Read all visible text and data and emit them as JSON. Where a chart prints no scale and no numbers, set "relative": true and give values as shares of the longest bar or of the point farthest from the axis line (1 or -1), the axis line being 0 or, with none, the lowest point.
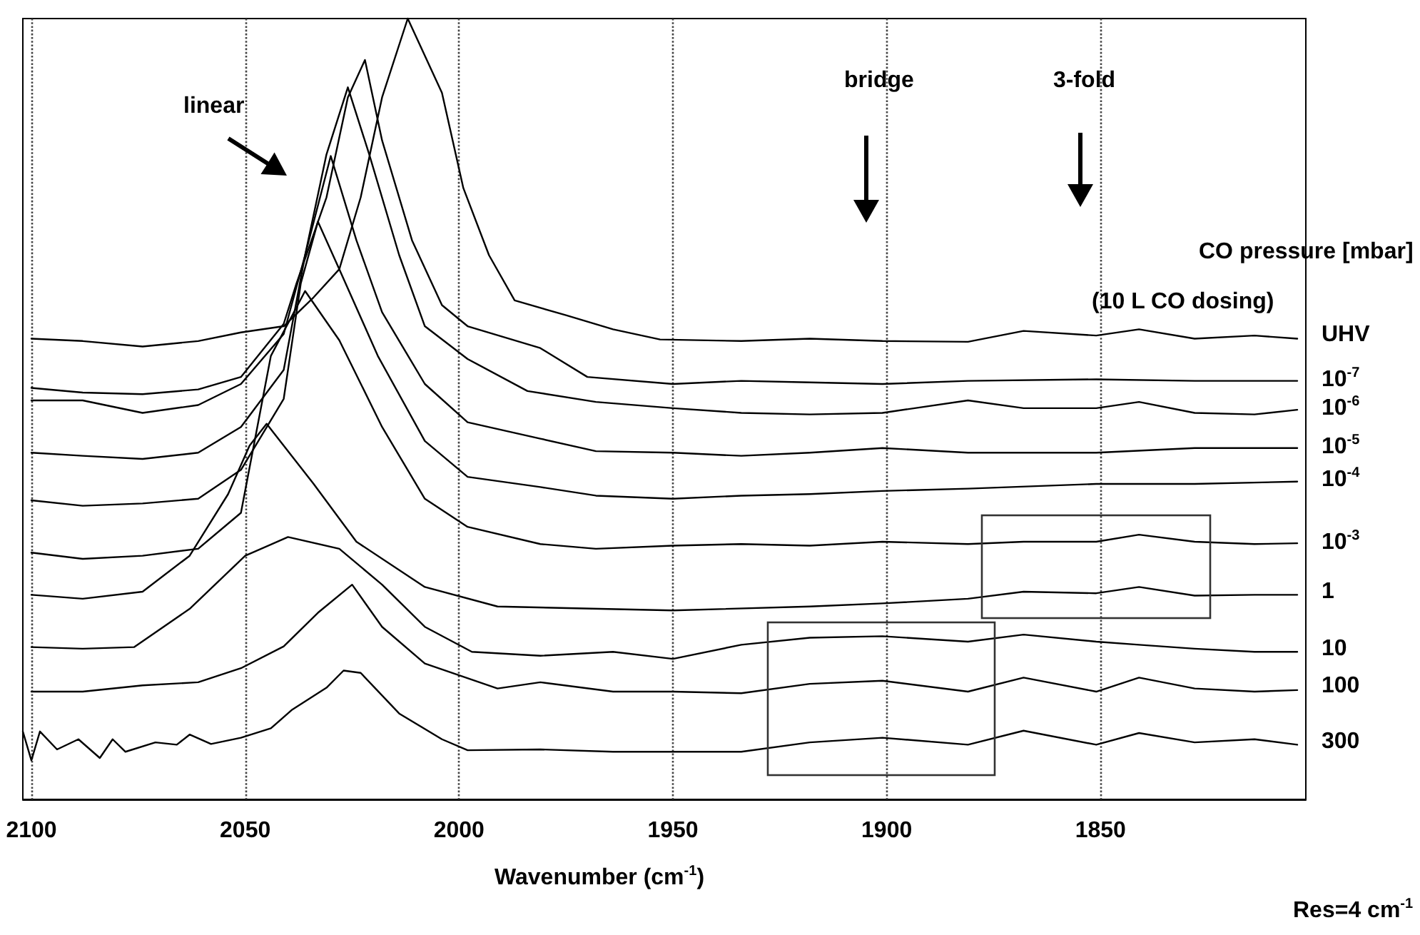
{
  "chart_data": {
    "type": "line",
    "relative": true,
    "xlabel": "Wavenumber (cm$^{-1}$)",
    "xlim": [
      2102,
      1802
    ],
    "xticks": [
      2100,
      2050,
      2000,
      1950,
      1900,
      1850
    ],
    "grid": "x",
    "legend": false,
    "marker": "none",
    "line_style": "solid",
    "annotations": [
      "linear",
      "bridge",
      "3-fold",
      "CO pressure [mbar]",
      "(10 L CO dosing)",
      "Res=4 cm$^{-1}$"
    ],
    "series": [
      {
        "name": "UHV",
        "color": "#000000",
        "x": [
          2100,
          2088,
          2074,
          2061,
          2051,
          2041,
          2034,
          2028,
          2023,
          2018,
          2012,
          2004,
          1999,
          1993,
          1987,
          1975,
          1964,
          1953,
          1934,
          1918,
          1901,
          1881,
          1868,
          1851,
          1841,
          1828,
          1814,
          1804
        ],
        "values": [
          0.59,
          0.587,
          0.58,
          0.587,
          0.598,
          0.606,
          0.643,
          0.679,
          0.771,
          0.899,
          1.0,
          0.905,
          0.783,
          0.697,
          0.639,
          0.62,
          0.602,
          0.589,
          0.587,
          0.59,
          0.587,
          0.586,
          0.6,
          0.594,
          0.602,
          0.59,
          0.594,
          0.59
        ]
      },
      {
        "name": "10$^{-7}$",
        "color": "#000000",
        "x": [
          2100,
          2088,
          2074,
          2061,
          2051,
          2041,
          2038,
          2031,
          2026,
          2022,
          2018,
          2011,
          2004,
          1998,
          1981,
          1970,
          1950,
          1934,
          1918,
          1901,
          1881,
          1851,
          1828,
          1804
        ],
        "values": [
          0.527,
          0.521,
          0.519,
          0.525,
          0.541,
          0.609,
          0.661,
          0.771,
          0.899,
          0.947,
          0.844,
          0.716,
          0.633,
          0.606,
          0.578,
          0.541,
          0.532,
          0.536,
          0.534,
          0.532,
          0.536,
          0.538,
          0.536,
          0.536
        ]
      },
      {
        "name": "10$^{-6}$",
        "color": "#000000",
        "x": [
          2100,
          2088,
          2074,
          2061,
          2051,
          2041,
          2036,
          2031,
          2026,
          2021,
          2014,
          2008,
          1998,
          1984,
          1968,
          1950,
          1934,
          1918,
          1901,
          1881,
          1868,
          1851,
          1841,
          1828,
          1814,
          1804
        ],
        "values": [
          0.511,
          0.511,
          0.495,
          0.505,
          0.532,
          0.596,
          0.697,
          0.826,
          0.912,
          0.826,
          0.697,
          0.606,
          0.564,
          0.523,
          0.509,
          0.501,
          0.495,
          0.493,
          0.495,
          0.511,
          0.501,
          0.501,
          0.509,
          0.495,
          0.493,
          0.499
        ]
      },
      {
        "name": "10$^{-5}$",
        "color": "#000000",
        "x": [
          2100,
          2088,
          2074,
          2061,
          2051,
          2041,
          2036,
          2030,
          2024,
          2018,
          2008,
          1998,
          1981,
          1968,
          1950,
          1934,
          1918,
          1901,
          1881,
          1851,
          1828,
          1804
        ],
        "values": [
          0.444,
          0.44,
          0.436,
          0.444,
          0.477,
          0.55,
          0.697,
          0.824,
          0.716,
          0.624,
          0.532,
          0.483,
          0.462,
          0.446,
          0.444,
          0.44,
          0.444,
          0.45,
          0.444,
          0.444,
          0.45,
          0.45
        ]
      },
      {
        "name": "10$^{-4}$",
        "color": "#000000",
        "x": [
          2100,
          2088,
          2074,
          2061,
          2051,
          2041,
          2037,
          2033,
          2028,
          2019,
          2008,
          1998,
          1981,
          1968,
          1950,
          1934,
          1918,
          1901,
          1881,
          1851,
          1828,
          1804
        ],
        "values": [
          0.383,
          0.376,
          0.379,
          0.385,
          0.422,
          0.513,
          0.661,
          0.74,
          0.679,
          0.568,
          0.459,
          0.413,
          0.4,
          0.389,
          0.385,
          0.389,
          0.391,
          0.395,
          0.398,
          0.404,
          0.404,
          0.407
        ]
      },
      {
        "name": "10$^{-3}$",
        "color": "#000000",
        "x": [
          2100,
          2088,
          2074,
          2061,
          2051,
          2044,
          2036,
          2028,
          2018,
          2008,
          1998,
          1981,
          1968,
          1950,
          1934,
          1918,
          1901,
          1881,
          1868,
          1851,
          1841,
          1828,
          1814,
          1804
        ],
        "values": [
          0.316,
          0.308,
          0.312,
          0.321,
          0.367,
          0.568,
          0.651,
          0.588,
          0.477,
          0.385,
          0.349,
          0.327,
          0.321,
          0.325,
          0.327,
          0.325,
          0.33,
          0.327,
          0.33,
          0.33,
          0.339,
          0.33,
          0.327,
          0.328
        ]
      },
      {
        "name": "1",
        "color": "#000000",
        "x": [
          2100,
          2088,
          2074,
          2063,
          2054,
          2049,
          2045,
          2034,
          2024,
          2008,
          1991,
          1950,
          1918,
          1901,
          1881,
          1868,
          1851,
          1841,
          1828,
          1814,
          1804
        ],
        "values": [
          0.262,
          0.257,
          0.266,
          0.312,
          0.391,
          0.453,
          0.481,
          0.404,
          0.33,
          0.272,
          0.247,
          0.242,
          0.247,
          0.251,
          0.257,
          0.266,
          0.264,
          0.272,
          0.261,
          0.262,
          0.262
        ]
      },
      {
        "name": "10",
        "color": "#000000",
        "x": [
          2100,
          2088,
          2076,
          2063,
          2050,
          2040,
          2028,
          2018,
          2008,
          1997,
          1981,
          1964,
          1950,
          1934,
          1918,
          1901,
          1881,
          1868,
          1851,
          1841,
          1828,
          1814,
          1804
        ],
        "values": [
          0.195,
          0.193,
          0.195,
          0.244,
          0.312,
          0.336,
          0.321,
          0.275,
          0.221,
          0.189,
          0.184,
          0.189,
          0.18,
          0.198,
          0.207,
          0.209,
          0.202,
          0.211,
          0.202,
          0.198,
          0.193,
          0.189,
          0.189
        ]
      },
      {
        "name": "100",
        "color": "#000000",
        "x": [
          2100,
          2088,
          2074,
          2061,
          2051,
          2041,
          2033,
          2025,
          2018,
          2008,
          1991,
          1981,
          1964,
          1950,
          1934,
          1918,
          1901,
          1881,
          1868,
          1851,
          1841,
          1828,
          1814,
          1804
        ],
        "values": [
          0.138,
          0.138,
          0.146,
          0.15,
          0.168,
          0.196,
          0.239,
          0.275,
          0.221,
          0.174,
          0.142,
          0.15,
          0.138,
          0.138,
          0.136,
          0.148,
          0.152,
          0.138,
          0.156,
          0.138,
          0.156,
          0.142,
          0.138,
          0.14
        ]
      },
      {
        "name": "300",
        "color": "#000000",
        "x": [
          2102,
          2100,
          2098,
          2094,
          2089,
          2084,
          2081,
          2078,
          2071,
          2066,
          2063,
          2058,
          2051,
          2044,
          2039,
          2031,
          2027,
          2023,
          2014,
          2004,
          1998,
          1981,
          1964,
          1950,
          1934,
          1918,
          1901,
          1881,
          1868,
          1851,
          1841,
          1828,
          1814,
          1804
        ],
        "values": [
          0.087,
          0.05,
          0.087,
          0.064,
          0.077,
          0.053,
          0.077,
          0.061,
          0.073,
          0.07,
          0.083,
          0.071,
          0.079,
          0.091,
          0.115,
          0.143,
          0.165,
          0.162,
          0.11,
          0.077,
          0.063,
          0.064,
          0.061,
          0.061,
          0.061,
          0.073,
          0.079,
          0.07,
          0.088,
          0.07,
          0.085,
          0.073,
          0.077,
          0.07
        ]
      }
    ]
  }
}
